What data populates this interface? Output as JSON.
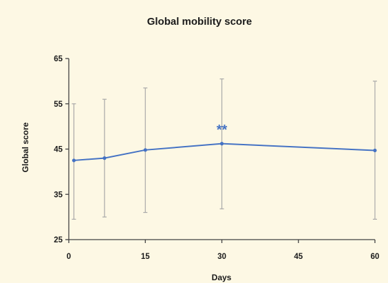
{
  "chart_data": {
    "type": "line",
    "title": "Global mobility score",
    "xlabel": "Days",
    "ylabel": "Global score",
    "x_ticks": [
      0,
      15,
      30,
      45,
      60
    ],
    "y_ticks": [
      25,
      35,
      45,
      55,
      65
    ],
    "xlim": [
      0,
      60
    ],
    "ylim": [
      25,
      65
    ],
    "grid": false,
    "legend": "none",
    "series": [
      {
        "x": [
          1,
          7,
          15,
          30,
          60
        ],
        "y": [
          42.5,
          43.0,
          44.8,
          46.2,
          44.7
        ],
        "error_upper": [
          55.0,
          56.0,
          58.5,
          60.5,
          60.0
        ],
        "error_lower": [
          29.5,
          30.0,
          31.0,
          31.8,
          29.5
        ]
      }
    ],
    "annotations": [
      {
        "text": "**",
        "x": 30,
        "y": 49.5
      }
    ]
  },
  "colors": {
    "line": "#4472c4",
    "error_bar": "#a8a8a8",
    "axis": "#404040",
    "background": "#fdf8e4"
  }
}
